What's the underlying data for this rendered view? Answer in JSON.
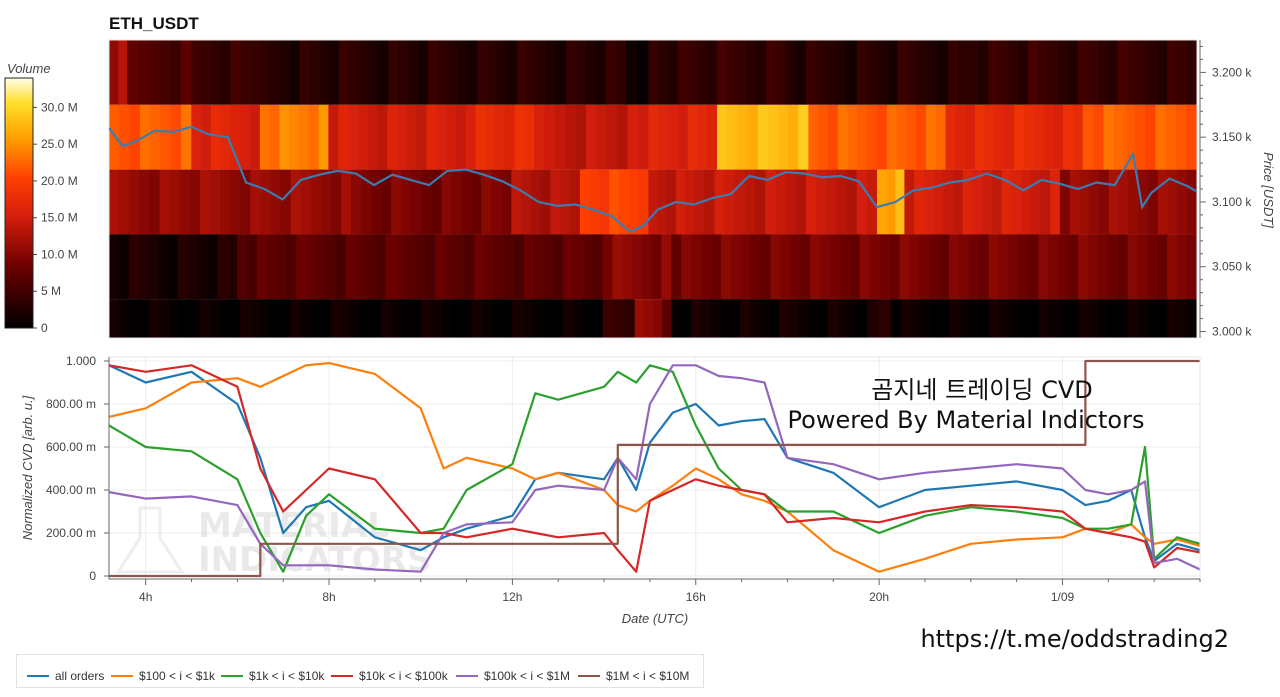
{
  "heatmap_title": "ETH_USDT",
  "colorbar": {
    "label": "Volume",
    "ticks": [
      "30.0 M",
      "25.0 M",
      "20.0 M",
      "15.0 M",
      "10.0 M",
      "5 M",
      "0"
    ],
    "tick_values": [
      30,
      25,
      20,
      15,
      10,
      5,
      0
    ],
    "max": 34
  },
  "price_axis": {
    "label": "Price [USDT]",
    "ticks": [
      "3.200 k",
      "3.150 k",
      "3.100 k",
      "3.050 k",
      "3.000 k"
    ],
    "tick_values": [
      3200,
      3150,
      3100,
      3050,
      3000
    ]
  },
  "cvd_axis": {
    "label": "Normalized CVD [arb. u.]",
    "ticks": [
      "1.000",
      "800.00 m",
      "600.00 m",
      "400.00 m",
      "200.00 m",
      "0"
    ],
    "tick_values": [
      1.0,
      0.8,
      0.6,
      0.4,
      0.2,
      0
    ]
  },
  "x_axis": {
    "label": "Date (UTC)",
    "ticks": [
      "4h",
      "8h",
      "12h",
      "16h",
      "20h",
      "1/09"
    ],
    "tick_hours": [
      4,
      8,
      12,
      16,
      20,
      24
    ]
  },
  "overlay": {
    "line1": "곰지네 트레이딩 CVD",
    "line2": "Powered By Material Indictors",
    "url": "https://t.me/oddstrading2"
  },
  "watermark": {
    "line1": "MATERIAL",
    "line2": "INDICATORS"
  },
  "legend": [
    {
      "label": "all orders",
      "color": "#1f77b4"
    },
    {
      "label": "$100 < i < $1k",
      "color": "#ff7f0e"
    },
    {
      "label": "$1k < i < $10k",
      "color": "#2ca02c"
    },
    {
      "label": "$10k < i < $100k",
      "color": "#d62728"
    },
    {
      "label": "$100k < i < $1M",
      "color": "#9467bd"
    },
    {
      "label": "$1M < i < $10M",
      "color": "#8c564b"
    }
  ],
  "chart_data": [
    {
      "type": "heatmap",
      "title": "ETH_USDT",
      "x_range_hours": [
        3.2,
        27.0
      ],
      "price_bands": [
        3200,
        3150,
        3100,
        3050,
        3000
      ],
      "band_edges": [
        3225,
        3175,
        3125,
        3075,
        3025,
        2995
      ],
      "band_volume_profile": [
        {
          "band": 3200,
          "segments": [
            [
              3.2,
              3.6,
              12
            ],
            [
              3.6,
              5.0,
              6
            ],
            [
              5.0,
              6.5,
              4
            ],
            [
              6.5,
              14.5,
              3
            ],
            [
              14.5,
              15.0,
              1
            ],
            [
              15.0,
              18.0,
              4
            ],
            [
              18.0,
              22.0,
              3
            ],
            [
              22.0,
              27.0,
              4
            ]
          ]
        },
        {
          "band": 3150,
          "segments": [
            [
              3.2,
              5.0,
              22
            ],
            [
              5.0,
              6.5,
              16
            ],
            [
              6.5,
              8.0,
              24
            ],
            [
              8.0,
              11.0,
              15
            ],
            [
              11.0,
              12.5,
              17
            ],
            [
              12.5,
              15.0,
              14
            ],
            [
              15.0,
              16.5,
              16
            ],
            [
              16.5,
              18.5,
              28
            ],
            [
              18.5,
              21.5,
              22
            ],
            [
              21.5,
              24.5,
              17
            ],
            [
              24.5,
              27.0,
              22
            ]
          ]
        },
        {
          "band": 3100,
          "segments": [
            [
              3.2,
              8.5,
              11
            ],
            [
              8.5,
              12.0,
              9
            ],
            [
              12.0,
              13.5,
              13
            ],
            [
              13.5,
              15.0,
              20
            ],
            [
              15.0,
              16.0,
              14
            ],
            [
              16.0,
              20.0,
              14
            ],
            [
              20.0,
              20.6,
              27
            ],
            [
              20.6,
              24.0,
              15
            ],
            [
              24.0,
              27.0,
              11
            ]
          ]
        },
        {
          "band": 3050,
          "segments": [
            [
              3.2,
              6.0,
              2
            ],
            [
              6.0,
              14.0,
              7
            ],
            [
              14.0,
              15.5,
              10
            ],
            [
              15.5,
              27.0,
              9
            ]
          ]
        },
        {
          "band": 3000,
          "segments": [
            [
              3.2,
              14.0,
              0.5
            ],
            [
              14.0,
              14.7,
              4
            ],
            [
              14.7,
              15.3,
              11
            ],
            [
              15.3,
              15.5,
              7
            ],
            [
              15.5,
              20.0,
              1
            ],
            [
              20.0,
              20.3,
              4
            ],
            [
              20.3,
              27.0,
              0.5
            ]
          ]
        }
      ],
      "price_series": {
        "x_hours": [
          3.2,
          3.5,
          3.8,
          4.2,
          4.6,
          5.0,
          5.4,
          5.8,
          6.2,
          6.6,
          7.0,
          7.4,
          7.8,
          8.2,
          8.6,
          9.0,
          9.4,
          9.8,
          10.2,
          10.6,
          11.0,
          11.4,
          11.8,
          12.2,
          12.6,
          13.0,
          13.4,
          13.8,
          14.2,
          14.6,
          14.9,
          15.2,
          15.6,
          16.0,
          16.4,
          16.8,
          17.2,
          17.6,
          18.0,
          18.4,
          18.8,
          19.2,
          19.6,
          20.0,
          20.4,
          20.8,
          21.2,
          21.6,
          22.0,
          22.4,
          22.8,
          23.2,
          23.6,
          24.0,
          24.4,
          24.8,
          25.2,
          25.6,
          25.8,
          26.0,
          26.4,
          26.8,
          27.0
        ],
        "price": [
          3157,
          3143,
          3147,
          3155,
          3154,
          3158,
          3152,
          3150,
          3115,
          3110,
          3102,
          3117,
          3121,
          3124,
          3122,
          3113,
          3121,
          3117,
          3113,
          3124,
          3125,
          3121,
          3116,
          3109,
          3100,
          3097,
          3098,
          3094,
          3089,
          3077,
          3082,
          3094,
          3100,
          3098,
          3103,
          3106,
          3120,
          3117,
          3123,
          3122,
          3119,
          3120,
          3116,
          3096,
          3100,
          3109,
          3111,
          3115,
          3117,
          3122,
          3117,
          3109,
          3117,
          3114,
          3110,
          3115,
          3113,
          3137,
          3096,
          3107,
          3118,
          3112,
          3108
        ]
      }
    },
    {
      "type": "line",
      "xlabel": "Date (UTC)",
      "ylabel": "Normalized CVD [arb. u.]",
      "ylim": [
        0,
        1.0
      ],
      "x_hours": [
        3.2,
        4,
        5,
        6,
        6.5,
        7,
        7.5,
        8,
        9,
        10,
        10.5,
        11,
        12,
        12.5,
        13,
        14,
        14.3,
        14.7,
        15,
        15.5,
        16,
        16.5,
        17,
        17.5,
        18,
        19,
        20,
        21,
        22,
        23,
        24,
        24.5,
        25,
        25.5,
        25.8,
        26,
        26.5,
        27
      ],
      "series": [
        {
          "name": "all orders",
          "values": [
            0.98,
            0.9,
            0.95,
            0.8,
            0.55,
            0.2,
            0.32,
            0.35,
            0.18,
            0.12,
            0.18,
            0.22,
            0.28,
            0.45,
            0.48,
            0.45,
            0.55,
            0.4,
            0.62,
            0.76,
            0.8,
            0.7,
            0.72,
            0.73,
            0.55,
            0.48,
            0.32,
            0.4,
            0.42,
            0.44,
            0.4,
            0.33,
            0.35,
            0.4,
            0.18,
            0.07,
            0.15,
            0.12
          ]
        },
        {
          "name": "$100 < i < $1k",
          "values": [
            0.74,
            0.78,
            0.9,
            0.92,
            0.88,
            0.93,
            0.98,
            0.99,
            0.94,
            0.78,
            0.5,
            0.55,
            0.5,
            0.45,
            0.48,
            0.4,
            0.33,
            0.3,
            0.35,
            0.42,
            0.5,
            0.45,
            0.38,
            0.35,
            0.3,
            0.12,
            0.02,
            0.08,
            0.15,
            0.17,
            0.18,
            0.22,
            0.2,
            0.24,
            0.18,
            0.15,
            0.17,
            0.14
          ]
        },
        {
          "name": "$1k < i < $10k",
          "values": [
            0.7,
            0.6,
            0.58,
            0.45,
            0.2,
            0.02,
            0.28,
            0.38,
            0.22,
            0.2,
            0.22,
            0.4,
            0.52,
            0.85,
            0.82,
            0.88,
            0.95,
            0.9,
            0.98,
            0.95,
            0.7,
            0.5,
            0.4,
            0.38,
            0.3,
            0.3,
            0.2,
            0.28,
            0.32,
            0.3,
            0.27,
            0.22,
            0.22,
            0.24,
            0.6,
            0.08,
            0.18,
            0.15
          ]
        },
        {
          "name": "$10k < i < $100k",
          "values": [
            0.98,
            0.95,
            0.98,
            0.88,
            0.5,
            0.3,
            0.4,
            0.5,
            0.45,
            0.2,
            0.2,
            0.18,
            0.22,
            0.2,
            0.18,
            0.2,
            0.12,
            0.02,
            0.35,
            0.4,
            0.45,
            0.42,
            0.4,
            0.38,
            0.25,
            0.27,
            0.25,
            0.3,
            0.33,
            0.32,
            0.3,
            0.22,
            0.2,
            0.18,
            0.16,
            0.04,
            0.13,
            0.11
          ]
        },
        {
          "name": "$100k < i < $1M",
          "values": [
            0.39,
            0.36,
            0.37,
            0.33,
            0.15,
            0.05,
            0.05,
            0.05,
            0.03,
            0.02,
            0.2,
            0.24,
            0.25,
            0.4,
            0.42,
            0.4,
            0.55,
            0.45,
            0.8,
            0.98,
            0.98,
            0.93,
            0.92,
            0.9,
            0.55,
            0.52,
            0.45,
            0.48,
            0.5,
            0.52,
            0.5,
            0.4,
            0.38,
            0.4,
            0.44,
            0.06,
            0.08,
            0.03
          ]
        },
        {
          "name": "$1M < i < $10M",
          "values": [
            0.0,
            0.0,
            0.0,
            0.0,
            0.15,
            0.15,
            0.15,
            0.15,
            0.15,
            0.15,
            0.15,
            0.15,
            0.15,
            0.15,
            0.15,
            0.15,
            0.61,
            0.61,
            0.61,
            0.61,
            0.61,
            0.61,
            0.61,
            0.61,
            0.61,
            0.61,
            0.61,
            0.61,
            0.61,
            0.61,
            0.61,
            1.0,
            1.0,
            1.0,
            1.0,
            1.0,
            1.0,
            1.0
          ]
        }
      ]
    }
  ]
}
